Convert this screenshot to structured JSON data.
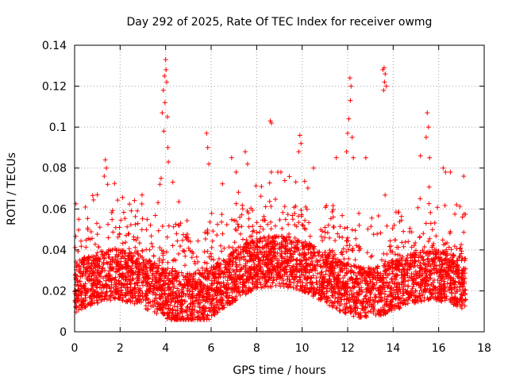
{
  "chart_data": {
    "type": "scatter",
    "title": "Day 292 of 2025, Rate Of TEC Index for receiver owmg",
    "xlabel": "GPS time / hours",
    "ylabel": "ROTI / TECUs",
    "xlim": [
      0,
      18
    ],
    "ylim": [
      0,
      0.14
    ],
    "x_ticks": [
      0,
      2,
      4,
      6,
      8,
      10,
      12,
      14,
      16,
      18
    ],
    "y_ticks": [
      0,
      0.02,
      0.04,
      0.06,
      0.08,
      0.1,
      0.12,
      0.14
    ],
    "x_tick_labels": [
      "0",
      "2",
      "4",
      "6",
      "8",
      "10",
      "12",
      "14",
      "16",
      "18"
    ],
    "y_tick_labels": [
      "0",
      "0.02",
      "0.04",
      "0.06",
      "0.08",
      "0.1",
      "0.12",
      "0.14"
    ],
    "grid": true,
    "marker": "plus",
    "marker_color": "#ff0000",
    "x_range_of_data": [
      0,
      17.2
    ],
    "series": [
      {
        "name": "",
        "points": [
          [
            3.85,
            0.107
          ],
          [
            3.9,
            0.118
          ],
          [
            3.95,
            0.125
          ],
          [
            4.0,
            0.133
          ],
          [
            4.02,
            0.128
          ],
          [
            4.05,
            0.122
          ],
          [
            3.97,
            0.112
          ],
          [
            4.08,
            0.105
          ],
          [
            3.92,
            0.098
          ],
          [
            4.1,
            0.09
          ],
          [
            4.12,
            0.083
          ],
          [
            3.8,
            0.075
          ],
          [
            3.75,
            0.072
          ],
          [
            13.55,
            0.128
          ],
          [
            13.6,
            0.129
          ],
          [
            13.65,
            0.126
          ],
          [
            13.62,
            0.122
          ],
          [
            13.58,
            0.118
          ],
          [
            13.7,
            0.12
          ],
          [
            12.1,
            0.124
          ],
          [
            12.15,
            0.12
          ],
          [
            12.12,
            0.113
          ],
          [
            12.05,
            0.104
          ],
          [
            12.0,
            0.097
          ],
          [
            12.2,
            0.095
          ],
          [
            11.95,
            0.088
          ],
          [
            12.25,
            0.085
          ],
          [
            15.5,
            0.107
          ],
          [
            15.55,
            0.1
          ],
          [
            15.45,
            0.095
          ],
          [
            15.6,
            0.085
          ],
          [
            15.2,
            0.086
          ],
          [
            8.6,
            0.103
          ],
          [
            8.65,
            0.102
          ],
          [
            9.9,
            0.096
          ],
          [
            9.95,
            0.092
          ],
          [
            9.85,
            0.088
          ],
          [
            5.8,
            0.097
          ],
          [
            5.85,
            0.09
          ],
          [
            5.9,
            0.082
          ],
          [
            1.35,
            0.084
          ],
          [
            1.4,
            0.08
          ],
          [
            1.3,
            0.076
          ],
          [
            1.45,
            0.072
          ],
          [
            7.5,
            0.088
          ],
          [
            7.6,
            0.082
          ],
          [
            6.9,
            0.085
          ],
          [
            7.1,
            0.078
          ],
          [
            10.5,
            0.08
          ],
          [
            11.5,
            0.085
          ],
          [
            12.8,
            0.085
          ],
          [
            16.2,
            0.08
          ],
          [
            16.3,
            0.078
          ],
          [
            17.1,
            0.076
          ]
        ]
      }
    ]
  }
}
